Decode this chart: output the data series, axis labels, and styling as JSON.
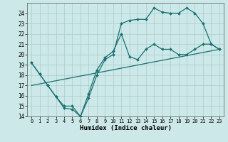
{
  "xlabel": "Humidex (Indice chaleur)",
  "xlim": [
    -0.5,
    23.5
  ],
  "ylim": [
    14,
    25
  ],
  "yticks": [
    14,
    15,
    16,
    17,
    18,
    19,
    20,
    21,
    22,
    23,
    24
  ],
  "xticks": [
    0,
    1,
    2,
    3,
    4,
    5,
    6,
    7,
    8,
    9,
    10,
    11,
    12,
    13,
    14,
    15,
    16,
    17,
    18,
    19,
    20,
    21,
    22,
    23
  ],
  "bg_color": "#cce8e8",
  "grid_color": "#aacccc",
  "line_color": "#1a7070",
  "line1_x": [
    0,
    1,
    2,
    3,
    4,
    5,
    6,
    7,
    8,
    9,
    10,
    11,
    12,
    13,
    14,
    15,
    16,
    17,
    18,
    19,
    20,
    21,
    22,
    23
  ],
  "line1_y": [
    19.2,
    18.1,
    17.0,
    15.9,
    14.8,
    14.7,
    14.0,
    15.8,
    18.0,
    19.5,
    20.0,
    23.0,
    23.3,
    23.4,
    23.4,
    24.5,
    24.1,
    24.0,
    24.0,
    24.5,
    24.0,
    23.0,
    21.0,
    20.5
  ],
  "line2_x": [
    0,
    1,
    2,
    3,
    4,
    5,
    6,
    7,
    8,
    9,
    10,
    11,
    12,
    13,
    14,
    15,
    16,
    17,
    18,
    19,
    20,
    21,
    22,
    23
  ],
  "line2_y": [
    19.2,
    18.1,
    17.0,
    15.9,
    15.0,
    15.0,
    14.0,
    16.2,
    18.5,
    19.7,
    20.3,
    22.0,
    19.8,
    19.5,
    20.5,
    21.0,
    20.5,
    20.5,
    20.0,
    20.0,
    20.5,
    21.0,
    21.0,
    20.5
  ],
  "line3_x": [
    0,
    23
  ],
  "line3_y": [
    17.0,
    20.5
  ]
}
